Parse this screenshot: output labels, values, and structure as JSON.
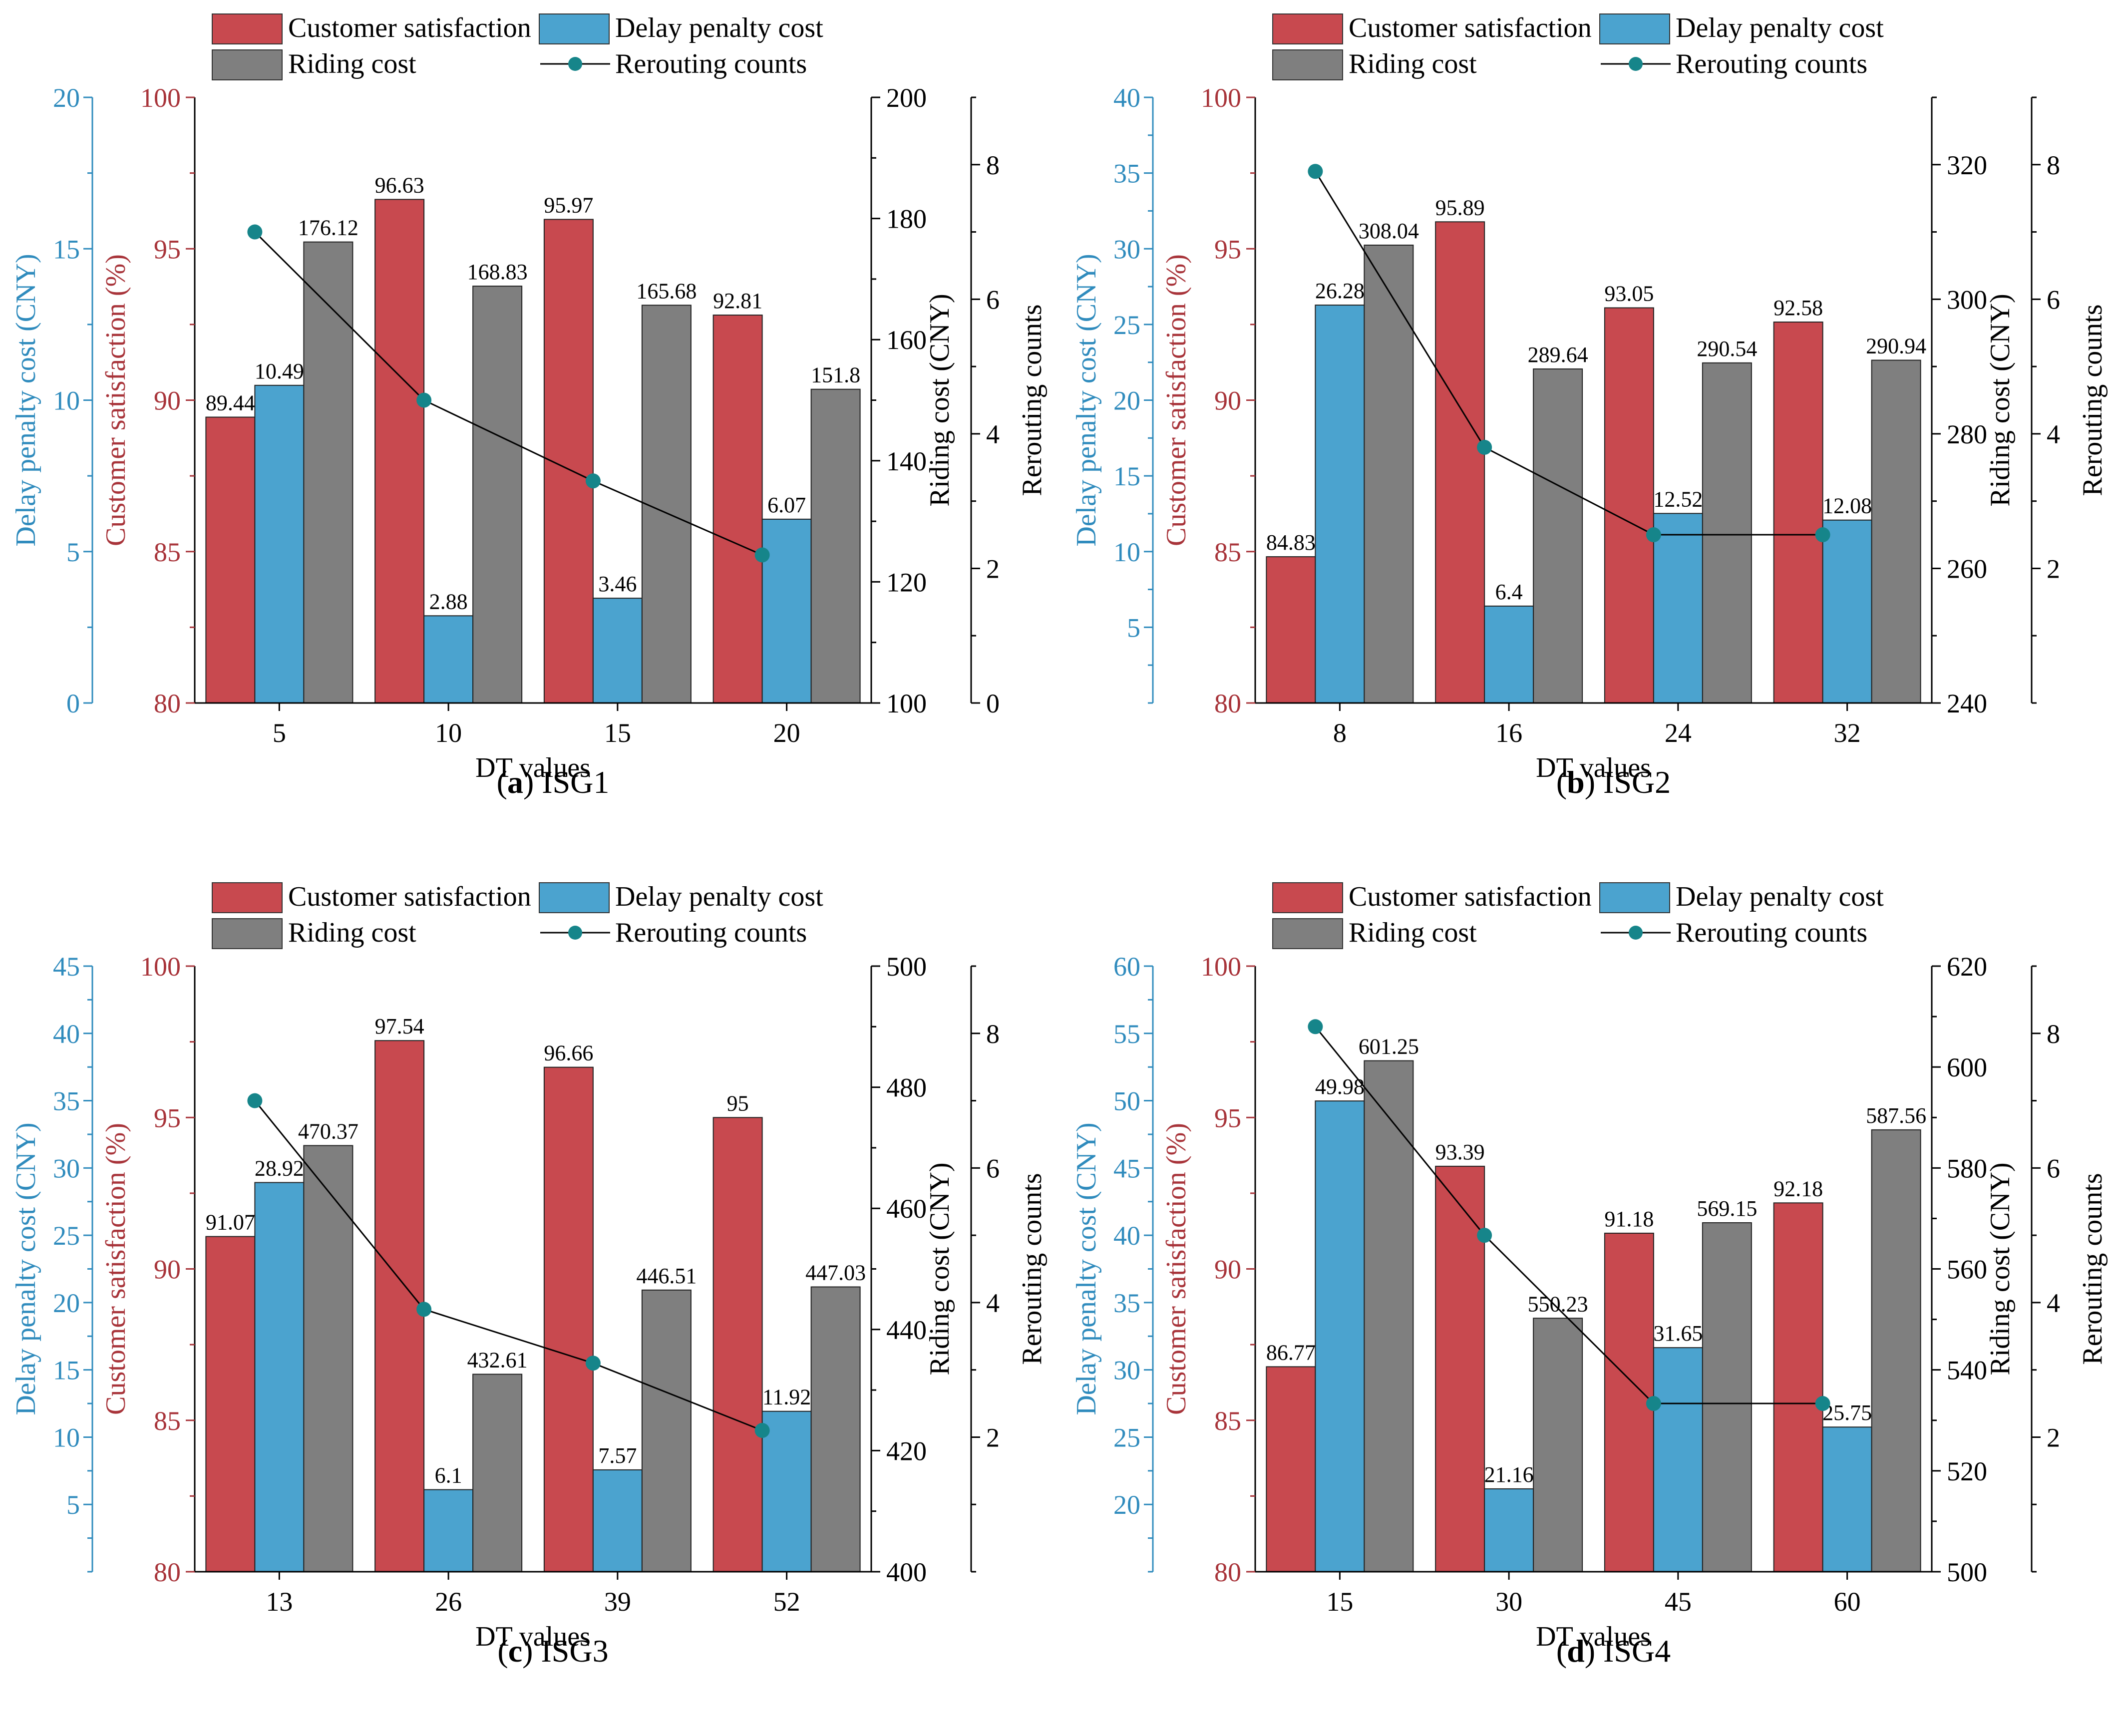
{
  "legend_labels": {
    "satisfaction": "Customer satisfaction",
    "penalty": "Delay penalty cost",
    "riding": "Riding cost",
    "rerouting": "Rerouting counts"
  },
  "colors": {
    "satisfaction": "#c8494f",
    "penalty": "#4ba3cf",
    "riding": "#7f7f7f",
    "rerouting": "#16858a",
    "satisfaction_axis": "#a8343a",
    "penalty_axis": "#2f8bbd",
    "riding_axis": "#000000"
  },
  "chart_data": [
    {
      "type": "bar",
      "caption_letter": "a",
      "caption_name": "ISG1",
      "xlabel": "DT values",
      "categories": [
        "5",
        "10",
        "15",
        "20"
      ],
      "axes": {
        "satisfaction": {
          "label": "Customer satisfaction (%)",
          "min": 80,
          "max": 100,
          "ticks": [
            "80",
            "85",
            "90",
            "95",
            "100"
          ]
        },
        "penalty": {
          "label": "Delay penalty cost (CNY)",
          "min": 0,
          "max": 20,
          "ticks": [
            "0",
            "5",
            "10",
            "15",
            "20"
          ]
        },
        "riding": {
          "label": "Riding cost (CNY)",
          "min": 100,
          "max": 200,
          "ticks": [
            "100",
            "120",
            "140",
            "160",
            "180",
            "200"
          ]
        },
        "rerouting": {
          "label": "Rerouting counts",
          "min": 0,
          "max": 9,
          "ticks": [
            "0",
            "2",
            "4",
            "6",
            "8"
          ]
        }
      },
      "series": [
        {
          "key": "satisfaction",
          "name": "Customer satisfaction",
          "values": [
            89.44,
            96.63,
            95.97,
            92.81
          ],
          "labels": [
            "89.44",
            "96.63",
            "95.97",
            "92.81"
          ]
        },
        {
          "key": "penalty",
          "name": "Delay penalty cost",
          "values": [
            10.49,
            2.88,
            3.46,
            6.07
          ],
          "labels": [
            "10.49",
            "2.88",
            "3.46",
            "6.07"
          ]
        },
        {
          "key": "riding",
          "name": "Riding cost",
          "values": [
            176.12,
            168.83,
            165.68,
            151.8
          ],
          "labels": [
            "176.12",
            "168.83",
            "165.68",
            "151.8"
          ]
        },
        {
          "key": "rerouting",
          "name": "Rerouting counts",
          "values": [
            7,
            4.5,
            3.3,
            2.2
          ]
        }
      ]
    },
    {
      "type": "bar",
      "caption_letter": "b",
      "caption_name": "ISG2",
      "xlabel": "DT values",
      "categories": [
        "8",
        "16",
        "24",
        "32"
      ],
      "axes": {
        "satisfaction": {
          "label": "Customer satisfaction (%)",
          "min": 80,
          "max": 100,
          "ticks": [
            "80",
            "85",
            "90",
            "95",
            "100"
          ]
        },
        "penalty": {
          "label": "Delay penalty cost (CNY)",
          "min": 0,
          "max": 40,
          "ticks": [
            "5",
            "10",
            "15",
            "20",
            "25",
            "30",
            "35",
            "40"
          ]
        },
        "riding": {
          "label": "Riding cost (CNY)",
          "min": 240,
          "max": 330,
          "ticks": [
            "240",
            "260",
            "280",
            "300",
            "320"
          ]
        },
        "rerouting": {
          "label": "Rerouting counts",
          "min": 0,
          "max": 9,
          "ticks": [
            "2",
            "4",
            "6",
            "8"
          ]
        }
      },
      "series": [
        {
          "key": "satisfaction",
          "name": "Customer satisfaction",
          "values": [
            84.83,
            95.89,
            93.05,
            92.58
          ],
          "labels": [
            "84.83",
            "95.89",
            "93.05",
            "92.58"
          ]
        },
        {
          "key": "penalty",
          "name": "Delay penalty cost",
          "values": [
            26.28,
            6.4,
            12.52,
            12.08
          ],
          "labels": [
            "26.28",
            "6.4",
            "12.52",
            "12.08"
          ]
        },
        {
          "key": "riding",
          "name": "Riding cost",
          "values": [
            308.04,
            289.64,
            290.54,
            290.94
          ],
          "labels": [
            "308.04",
            "289.64",
            "290.54",
            "290.94"
          ]
        },
        {
          "key": "rerouting",
          "name": "Rerouting counts",
          "values": [
            7.9,
            3.8,
            2.5,
            2.5
          ]
        }
      ]
    },
    {
      "type": "bar",
      "caption_letter": "c",
      "caption_name": "ISG3",
      "xlabel": "DT values",
      "categories": [
        "13",
        "26",
        "39",
        "52"
      ],
      "axes": {
        "satisfaction": {
          "label": "Customer satisfaction (%)",
          "min": 80,
          "max": 100,
          "ticks": [
            "80",
            "85",
            "90",
            "95",
            "100"
          ]
        },
        "penalty": {
          "label": "Delay penalty cost (CNY)",
          "min": 0,
          "max": 45,
          "ticks": [
            "5",
            "10",
            "15",
            "20",
            "25",
            "30",
            "35",
            "40",
            "45"
          ]
        },
        "riding": {
          "label": "Riding cost (CNY)",
          "min": 400,
          "max": 500,
          "ticks": [
            "400",
            "420",
            "440",
            "460",
            "480",
            "500"
          ]
        },
        "rerouting": {
          "label": "Rerouting counts",
          "min": 0,
          "max": 9,
          "ticks": [
            "2",
            "4",
            "6",
            "8"
          ]
        }
      },
      "series": [
        {
          "key": "satisfaction",
          "name": "Customer satisfaction",
          "values": [
            91.07,
            97.54,
            96.66,
            95
          ],
          "labels": [
            "91.07",
            "97.54",
            "96.66",
            "95"
          ]
        },
        {
          "key": "penalty",
          "name": "Delay penalty cost",
          "values": [
            28.92,
            6.1,
            7.57,
            11.92
          ],
          "labels": [
            "28.92",
            "6.1",
            "7.57",
            "11.92"
          ]
        },
        {
          "key": "riding",
          "name": "Riding cost",
          "values": [
            470.37,
            432.61,
            446.51,
            447.03
          ],
          "labels": [
            "470.37",
            "432.61",
            "446.51",
            "447.03"
          ]
        },
        {
          "key": "rerouting",
          "name": "Rerouting counts",
          "values": [
            7,
            3.9,
            3.1,
            2.1
          ]
        }
      ]
    },
    {
      "type": "bar",
      "caption_letter": "d",
      "caption_name": "ISG4",
      "xlabel": "DT values",
      "categories": [
        "15",
        "30",
        "45",
        "60"
      ],
      "axes": {
        "satisfaction": {
          "label": "Customer satisfaction (%)",
          "min": 80,
          "max": 100,
          "ticks": [
            "80",
            "85",
            "90",
            "95",
            "100"
          ]
        },
        "penalty": {
          "label": "Delay penalty cost (CNY)",
          "min": 15,
          "max": 60,
          "ticks": [
            "20",
            "25",
            "30",
            "35",
            "40",
            "45",
            "50",
            "55",
            "60"
          ]
        },
        "riding": {
          "label": "Riding cost (CNY)",
          "min": 500,
          "max": 620,
          "ticks": [
            "500",
            "520",
            "540",
            "560",
            "580",
            "600",
            "620"
          ]
        },
        "rerouting": {
          "label": "Rerouting counts",
          "min": 0,
          "max": 9,
          "ticks": [
            "2",
            "4",
            "6",
            "8"
          ]
        }
      },
      "series": [
        {
          "key": "satisfaction",
          "name": "Customer satisfaction",
          "values": [
            86.77,
            93.39,
            91.18,
            92.18
          ],
          "labels": [
            "86.77",
            "93.39",
            "91.18",
            "92.18"
          ]
        },
        {
          "key": "penalty",
          "name": "Delay penalty cost",
          "values": [
            49.98,
            21.16,
            31.65,
            25.75
          ],
          "labels": [
            "49.98",
            "21.16",
            "31.65",
            "25.75"
          ]
        },
        {
          "key": "riding",
          "name": "Riding cost",
          "values": [
            601.25,
            550.23,
            569.15,
            587.56
          ],
          "labels": [
            "601.25",
            "550.23",
            "569.15",
            "587.56"
          ]
        },
        {
          "key": "rerouting",
          "name": "Rerouting counts",
          "values": [
            8.1,
            5,
            2.5,
            2.5
          ]
        }
      ]
    }
  ]
}
